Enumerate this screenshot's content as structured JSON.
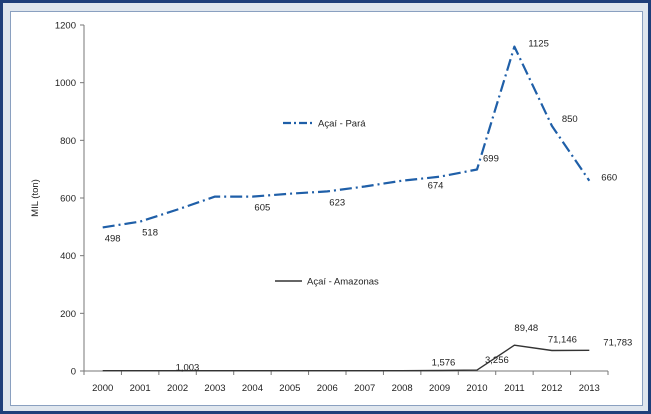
{
  "chart_data": {
    "type": "line",
    "title": "",
    "xlabel": "",
    "ylabel": "MIL (ton)",
    "ylim": [
      0,
      1200
    ],
    "yticks": [
      0,
      200,
      400,
      600,
      800,
      1000,
      1200
    ],
    "categories": [
      "2000",
      "2001",
      "2002",
      "2003",
      "2004",
      "2005",
      "2006",
      "2007",
      "2008",
      "2009",
      "2010",
      "2011",
      "2012",
      "2013"
    ],
    "legend_placement": "inside, near each series",
    "series": [
      {
        "name": "Açaí - Pará",
        "style": "dash-dot",
        "color": "#1f5fa8",
        "values": [
          498,
          518,
          560,
          605,
          605,
          615,
          623,
          640,
          660,
          674,
          699,
          1125,
          850,
          660
        ],
        "data_labels": [
          {
            "index": 0,
            "text": "498"
          },
          {
            "index": 1,
            "text": "518"
          },
          {
            "index": 4,
            "text": "605"
          },
          {
            "index": 6,
            "text": "623"
          },
          {
            "index": 9,
            "text": "674"
          },
          {
            "index": 10,
            "text": "699"
          },
          {
            "index": 11,
            "text": "1125"
          },
          {
            "index": 12,
            "text": "850"
          },
          {
            "index": 13,
            "text": "660"
          }
        ]
      },
      {
        "name": "Açaí - Amazonas",
        "style": "solid",
        "color": "#333333",
        "values": [
          1.003,
          1.003,
          1.003,
          1.003,
          1.003,
          1.003,
          1.003,
          1.003,
          1.003,
          1.576,
          3.256,
          89.48,
          71.146,
          71.783
        ],
        "data_labels": [
          {
            "index": 2,
            "text": "1,003"
          },
          {
            "index": 9,
            "text": "1,576"
          },
          {
            "index": 10,
            "text": "3,256"
          },
          {
            "index": 11,
            "text": "89,48"
          },
          {
            "index": 12,
            "text": "71,146"
          },
          {
            "index": 13,
            "text": "71,783"
          }
        ]
      }
    ]
  }
}
